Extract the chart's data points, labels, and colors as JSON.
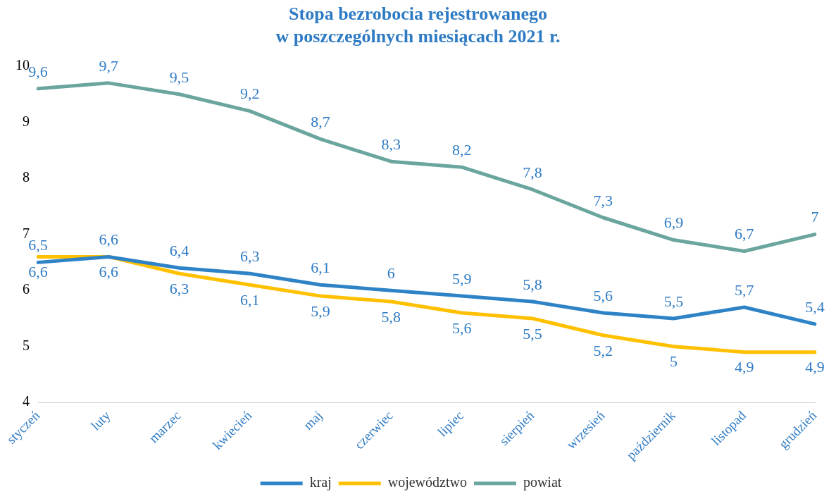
{
  "chart_data": {
    "type": "line",
    "title": "Stopa bezrobocia rejestrowanego\nw poszczególnych miesiącach 2021 r.",
    "categories": [
      "styczeń",
      "luty",
      "marzec",
      "kwiecień",
      "maj",
      "czerwiec",
      "lipiec",
      "sierpień",
      "wrzesień",
      "październik",
      "listopad",
      "grudzień"
    ],
    "series": [
      {
        "name": "kraj",
        "color": "#2e83c6",
        "values": [
          6.5,
          6.6,
          6.4,
          6.3,
          6.1,
          6,
          5.9,
          5.8,
          5.6,
          5.5,
          5.7,
          5.4
        ],
        "value_labels": [
          "6,5",
          "6,6",
          "6,4",
          "6,3",
          "6,1",
          "6",
          "5,9",
          "5,8",
          "5,6",
          "5,5",
          "5,7",
          "5,4"
        ]
      },
      {
        "name": "województwo",
        "color": "#ffc000",
        "values": [
          6.6,
          6.6,
          6.3,
          6.1,
          5.9,
          5.8,
          5.6,
          5.5,
          5.2,
          5,
          4.9,
          4.9
        ],
        "value_labels": [
          "6,6",
          "6,6",
          "6,3",
          "6,1",
          "5,9",
          "5,8",
          "5,6",
          "5,5",
          "5,2",
          "5",
          "4,9",
          "4,9"
        ]
      },
      {
        "name": "powiat",
        "color": "#6aa59e",
        "values": [
          9.6,
          9.7,
          9.5,
          9.2,
          8.7,
          8.3,
          8.2,
          7.8,
          7.3,
          6.9,
          6.7,
          7
        ],
        "value_labels": [
          "9,6",
          "9,7",
          "9,5",
          "9,2",
          "8,7",
          "8,3",
          "8,2",
          "7,8",
          "7,3",
          "6,9",
          "6,7",
          "7"
        ]
      }
    ],
    "ylim": [
      4,
      10
    ],
    "yticks": [
      4,
      5,
      6,
      7,
      8,
      9,
      10
    ],
    "grid": false,
    "legend": "bottom"
  }
}
